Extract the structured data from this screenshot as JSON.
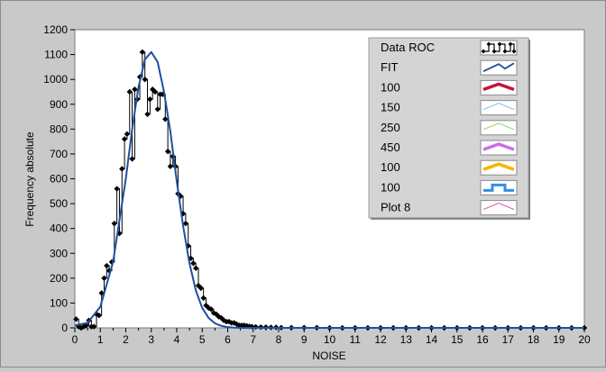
{
  "chart_data": {
    "type": "line",
    "xlabel": "NOISE",
    "ylabel": "Frequency absolute",
    "xlim": [
      0,
      20
    ],
    "ylim": [
      0,
      1200
    ],
    "xticks": [
      0,
      1,
      2,
      3,
      4,
      5,
      6,
      7,
      8,
      9,
      10,
      11,
      12,
      13,
      14,
      15,
      16,
      17,
      18,
      19,
      20
    ],
    "yticks": [
      0,
      100,
      200,
      300,
      400,
      500,
      600,
      700,
      800,
      900,
      1000,
      1100,
      1200
    ],
    "grid": false,
    "legend_position": "top-right",
    "legend": [
      {
        "label": "Data ROC",
        "color": "#000000",
        "icon": "black-line-with-diamond-markers"
      },
      {
        "label": "FIT",
        "color": "#1f4fa0",
        "icon": "blue-zigzag-line"
      },
      {
        "label": "100",
        "color": "#c8103a",
        "icon": "thick-crimson-line"
      },
      {
        "label": "150",
        "color": "#6fc0e8",
        "icon": "thin-cyan-line"
      },
      {
        "label": "250",
        "color": "#8fd160",
        "icon": "thin-green-line"
      },
      {
        "label": "450",
        "color": "#c86ee6",
        "icon": "thick-violet-line"
      },
      {
        "label": "100",
        "color": "#f4b800",
        "icon": "thick-yellow-line"
      },
      {
        "label": "100",
        "color": "#2f8fe8",
        "icon": "blue-step-line"
      },
      {
        "label": "Plot 8",
        "color": "#d050a0",
        "icon": "thin-magenta-line"
      }
    ],
    "series": [
      {
        "name": "Data ROC",
        "color": "#000000",
        "x": [
          0.05,
          0.15,
          0.25,
          0.35,
          0.45,
          0.55,
          0.65,
          0.75,
          0.85,
          0.95,
          1.05,
          1.15,
          1.25,
          1.35,
          1.45,
          1.55,
          1.65,
          1.75,
          1.85,
          1.95,
          2.05,
          2.15,
          2.25,
          2.35,
          2.45,
          2.55,
          2.65,
          2.75,
          2.85,
          2.95,
          3.05,
          3.15,
          3.25,
          3.35,
          3.45,
          3.55,
          3.65,
          3.75,
          3.85,
          3.95,
          4.05,
          4.15,
          4.25,
          4.35,
          4.45,
          4.55,
          4.65,
          4.75,
          4.85,
          4.95,
          5.05,
          5.15,
          5.25,
          5.35,
          5.45,
          5.55,
          5.65,
          5.75,
          5.85,
          5.95,
          6.05,
          6.15,
          6.25,
          6.35,
          6.45,
          6.55,
          6.65,
          6.75,
          6.85,
          6.95,
          7.1,
          7.3,
          7.5,
          7.7,
          7.9,
          8.1,
          8.5,
          9.0,
          9.5,
          10.0,
          10.5,
          11.0,
          11.5,
          12.0,
          12.5,
          13.0,
          13.5,
          14.0,
          14.5,
          15.0,
          15.5,
          16.0,
          16.5,
          17.0,
          17.5,
          18.0,
          18.5,
          19.0,
          19.5,
          20.0
        ],
        "y": [
          35,
          5,
          0,
          5,
          10,
          30,
          5,
          5,
          55,
          50,
          140,
          200,
          250,
          230,
          265,
          420,
          560,
          380,
          640,
          760,
          780,
          950,
          680,
          960,
          920,
          1010,
          1110,
          1000,
          860,
          920,
          960,
          950,
          880,
          940,
          940,
          840,
          710,
          650,
          690,
          650,
          540,
          530,
          460,
          420,
          330,
          280,
          260,
          240,
          170,
          160,
          120,
          90,
          80,
          75,
          60,
          55,
          45,
          40,
          30,
          25,
          25,
          20,
          20,
          15,
          10,
          10,
          10,
          8,
          6,
          5,
          4,
          3,
          3,
          2,
          2,
          1,
          1,
          1,
          1,
          0,
          0,
          0,
          0,
          0,
          0,
          0,
          0,
          0,
          0,
          0,
          0,
          0,
          0,
          0,
          0,
          0,
          0,
          0,
          0,
          0
        ]
      },
      {
        "name": "FIT",
        "color": "#1f4fa0",
        "x": [
          0,
          0.5,
          1.0,
          1.5,
          2.0,
          2.25,
          2.5,
          2.75,
          3.0,
          3.25,
          3.5,
          3.75,
          4.0,
          4.25,
          4.5,
          4.75,
          5.0,
          5.25,
          5.5,
          5.75,
          6.0,
          6.25,
          6.5,
          7.0,
          7.5,
          8.0,
          20.0
        ],
        "y": [
          10,
          20,
          85,
          265,
          600,
          800,
          970,
          1080,
          1110,
          1070,
          950,
          790,
          590,
          410,
          260,
          150,
          80,
          40,
          18,
          8,
          3,
          1,
          0,
          0,
          0,
          0,
          0
        ]
      }
    ]
  }
}
